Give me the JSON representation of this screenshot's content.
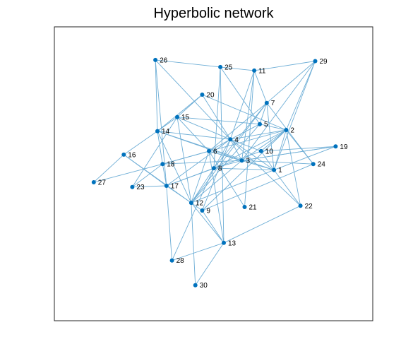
{
  "chart_data": {
    "type": "network",
    "title": "Hyperbolic network",
    "node_color": "#0072bd",
    "edge_color": "#6eaed6",
    "frame_color": "#262626",
    "nodes": [
      {
        "id": "1",
        "x": 0.6899,
        "y": 0.513
      },
      {
        "id": "2",
        "x": 0.7282,
        "y": 0.6491
      },
      {
        "id": "3",
        "x": 0.5887,
        "y": 0.5451
      },
      {
        "id": "4",
        "x": 0.5528,
        "y": 0.6171
      },
      {
        "id": "5",
        "x": 0.6452,
        "y": 0.6691
      },
      {
        "id": "6",
        "x": 0.4855,
        "y": 0.5771
      },
      {
        "id": "7",
        "x": 0.6669,
        "y": 0.7412
      },
      {
        "id": "8",
        "x": 0.5008,
        "y": 0.519
      },
      {
        "id": "9",
        "x": 0.4642,
        "y": 0.3749
      },
      {
        "id": "10",
        "x": 0.6492,
        "y": 0.5771
      },
      {
        "id": "11",
        "x": 0.6277,
        "y": 0.8513
      },
      {
        "id": "12",
        "x": 0.43,
        "y": 0.4011
      },
      {
        "id": "13",
        "x": 0.5322,
        "y": 0.265
      },
      {
        "id": "14",
        "x": 0.3237,
        "y": 0.6451
      },
      {
        "id": "15",
        "x": 0.3859,
        "y": 0.6931
      },
      {
        "id": "16",
        "x": 0.2179,
        "y": 0.5651
      },
      {
        "id": "17",
        "x": 0.3521,
        "y": 0.4592
      },
      {
        "id": "18",
        "x": 0.3399,
        "y": 0.5331
      },
      {
        "id": "19",
        "x": 0.8833,
        "y": 0.5931
      },
      {
        "id": "20",
        "x": 0.4642,
        "y": 0.7692
      },
      {
        "id": "21",
        "x": 0.5976,
        "y": 0.387
      },
      {
        "id": "22",
        "x": 0.7729,
        "y": 0.391
      },
      {
        "id": "23",
        "x": 0.2447,
        "y": 0.4551
      },
      {
        "id": "24",
        "x": 0.813,
        "y": 0.5331
      },
      {
        "id": "25",
        "x": 0.5213,
        "y": 0.8633
      },
      {
        "id": "26",
        "x": 0.3174,
        "y": 0.8873
      },
      {
        "id": "27",
        "x": 0.1237,
        "y": 0.4712
      },
      {
        "id": "28",
        "x": 0.3694,
        "y": 0.205
      },
      {
        "id": "29",
        "x": 0.8194,
        "y": 0.8833
      },
      {
        "id": "30",
        "x": 0.4428,
        "y": 0.1209
      }
    ],
    "edges": [
      [
        "26",
        "25"
      ],
      [
        "25",
        "11"
      ],
      [
        "11",
        "29"
      ],
      [
        "26",
        "14"
      ],
      [
        "26",
        "17"
      ],
      [
        "26",
        "4"
      ],
      [
        "25",
        "8"
      ],
      [
        "25",
        "5"
      ],
      [
        "25",
        "13"
      ],
      [
        "11",
        "4"
      ],
      [
        "11",
        "7"
      ],
      [
        "11",
        "3"
      ],
      [
        "11",
        "21"
      ],
      [
        "29",
        "7"
      ],
      [
        "29",
        "2"
      ],
      [
        "29",
        "3"
      ],
      [
        "29",
        "1"
      ],
      [
        "20",
        "15"
      ],
      [
        "20",
        "14"
      ],
      [
        "20",
        "4"
      ],
      [
        "20",
        "2"
      ],
      [
        "7",
        "5"
      ],
      [
        "7",
        "6"
      ],
      [
        "7",
        "8"
      ],
      [
        "7",
        "1"
      ],
      [
        "7",
        "24"
      ],
      [
        "7",
        "12"
      ],
      [
        "15",
        "5"
      ],
      [
        "15",
        "4"
      ],
      [
        "15",
        "6"
      ],
      [
        "15",
        "12"
      ],
      [
        "15",
        "23"
      ],
      [
        "15",
        "14"
      ],
      [
        "14",
        "4"
      ],
      [
        "14",
        "18"
      ],
      [
        "14",
        "12"
      ],
      [
        "14",
        "16"
      ],
      [
        "14",
        "3"
      ],
      [
        "14",
        "1"
      ],
      [
        "5",
        "2"
      ],
      [
        "5",
        "4"
      ],
      [
        "5",
        "12"
      ],
      [
        "2",
        "4"
      ],
      [
        "2",
        "10"
      ],
      [
        "2",
        "1"
      ],
      [
        "2",
        "8"
      ],
      [
        "2",
        "3"
      ],
      [
        "2",
        "22"
      ],
      [
        "2",
        "24"
      ],
      [
        "2",
        "9"
      ],
      [
        "2",
        "18"
      ],
      [
        "4",
        "6"
      ],
      [
        "4",
        "10"
      ],
      [
        "4",
        "3"
      ],
      [
        "4",
        "8"
      ],
      [
        "4",
        "9"
      ],
      [
        "4",
        "17"
      ],
      [
        "4",
        "22"
      ],
      [
        "4",
        "1"
      ],
      [
        "6",
        "3"
      ],
      [
        "6",
        "12"
      ],
      [
        "6",
        "21"
      ],
      [
        "6",
        "18"
      ],
      [
        "6",
        "1"
      ],
      [
        "6",
        "13"
      ],
      [
        "10",
        "19"
      ],
      [
        "10",
        "1"
      ],
      [
        "10",
        "17"
      ],
      [
        "3",
        "19"
      ],
      [
        "3",
        "24"
      ],
      [
        "3",
        "8"
      ],
      [
        "3",
        "18"
      ],
      [
        "8",
        "12"
      ],
      [
        "8",
        "17"
      ],
      [
        "8",
        "28"
      ],
      [
        "8",
        "1"
      ],
      [
        "16",
        "27"
      ],
      [
        "16",
        "12"
      ],
      [
        "16",
        "17"
      ],
      [
        "18",
        "27"
      ],
      [
        "18",
        "23"
      ],
      [
        "18",
        "17"
      ],
      [
        "17",
        "12"
      ],
      [
        "17",
        "28"
      ],
      [
        "17",
        "23"
      ],
      [
        "12",
        "9"
      ],
      [
        "12",
        "13"
      ],
      [
        "12",
        "30"
      ],
      [
        "12",
        "3"
      ],
      [
        "9",
        "13"
      ],
      [
        "9",
        "24"
      ],
      [
        "13",
        "28"
      ],
      [
        "13",
        "30"
      ],
      [
        "13",
        "22"
      ],
      [
        "1",
        "22"
      ],
      [
        "1",
        "19"
      ],
      [
        "1",
        "12"
      ],
      [
        "19",
        "3"
      ]
    ],
    "xlim": [
      0,
      1
    ],
    "ylim": [
      0,
      1
    ],
    "grid": false,
    "legend": "none"
  }
}
